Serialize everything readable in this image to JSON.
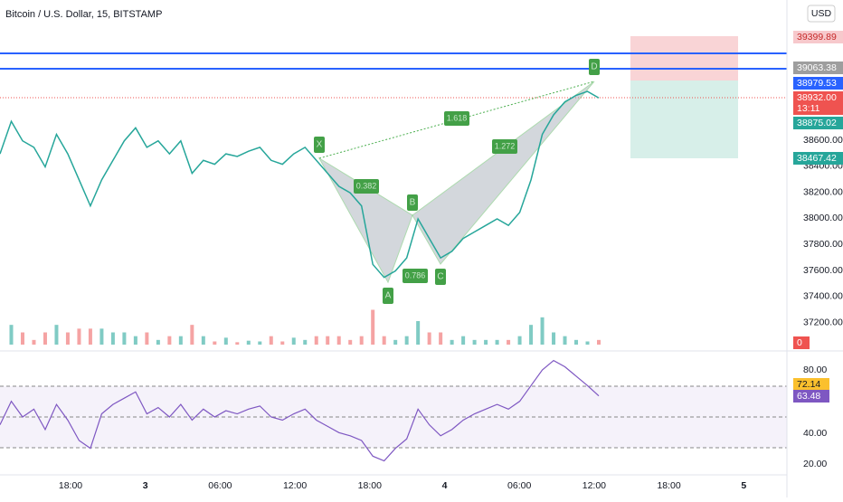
{
  "header": {
    "title": "Bitcoin / U.S. Dollar, 15, BITSTAMP",
    "currency": "USD"
  },
  "price_axis": [
    "38600.00",
    "38400.00",
    "38200.00",
    "38000.00",
    "37800.00",
    "37600.00",
    "37400.00",
    "37200.00"
  ],
  "price_tags": [
    "39399.89",
    "39063.38",
    "38979.53",
    "38932.00",
    "13:11",
    "38875.02",
    "38467.42",
    "0"
  ],
  "rsi_axis": [
    "80.00",
    "40.00",
    "20.00"
  ],
  "rsi_tags": [
    "72.14",
    "63.48"
  ],
  "time_axis": [
    "18:00",
    "3",
    "06:00",
    "12:00",
    "18:00",
    "4",
    "06:00",
    "12:00",
    "18:00",
    "5"
  ],
  "pattern": {
    "points": [
      "X",
      "A",
      "B",
      "C",
      "D"
    ],
    "ratios": [
      "0.382",
      "0.786",
      "1.618",
      "1.272"
    ]
  },
  "price": {
    "values": [
      38500,
      38750,
      38600,
      38550,
      38400,
      38650,
      38500,
      38300,
      38100,
      38300,
      38450,
      38600,
      38700,
      38550,
      38600,
      38500,
      38600,
      38350,
      38450,
      38420,
      38500,
      38480,
      38520,
      38550,
      38450,
      38420,
      38500,
      38550,
      38450,
      38350,
      38250,
      38200,
      38100,
      37650,
      37550,
      37600,
      37700,
      38000,
      37850,
      37700,
      37750,
      37850,
      37900,
      37950,
      38000,
      37950,
      38050,
      38300,
      38650,
      38800,
      38900,
      38950,
      38980,
      38930
    ]
  },
  "rsi": {
    "values": [
      45,
      60,
      50,
      55,
      42,
      58,
      48,
      35,
      30,
      52,
      58,
      62,
      66,
      52,
      56,
      50,
      58,
      48,
      55,
      50,
      54,
      52,
      55,
      57,
      50,
      48,
      52,
      55,
      48,
      44,
      40,
      38,
      35,
      25,
      22,
      30,
      36,
      55,
      45,
      38,
      42,
      48,
      52,
      55,
      58,
      55,
      60,
      70,
      80,
      86,
      82,
      76,
      70,
      63.48
    ]
  }
}
